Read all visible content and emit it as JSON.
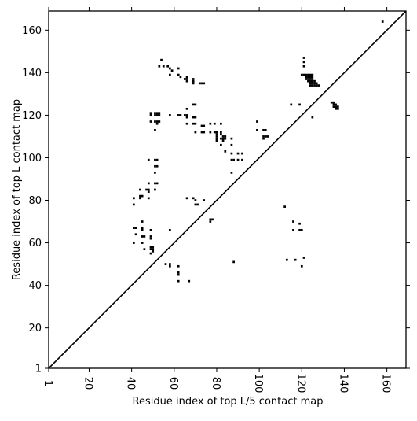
{
  "chart_data": {
    "type": "heatmap",
    "title": "",
    "xlabel": "Residue index of top L/5 contact map",
    "ylabel": "Residue index of top L contact map",
    "xlim": [
      1,
      169
    ],
    "ylim": [
      1,
      169
    ],
    "xticks": [
      1,
      20,
      40,
      60,
      80,
      100,
      120,
      140,
      160
    ],
    "yticks": [
      1,
      20,
      40,
      60,
      80,
      100,
      120,
      140,
      160
    ],
    "diagonal": true,
    "grid": false,
    "cell_color": "#000000",
    "upper_contacts": [
      [
        158,
        164
      ],
      [
        121,
        147
      ],
      [
        121,
        145
      ],
      [
        121,
        143
      ],
      [
        120,
        139
      ],
      [
        121,
        139
      ],
      [
        122,
        139
      ],
      [
        123,
        139
      ],
      [
        124,
        139
      ],
      [
        125,
        139
      ],
      [
        122,
        138
      ],
      [
        123,
        138
      ],
      [
        124,
        138
      ],
      [
        125,
        138
      ],
      [
        122,
        137
      ],
      [
        123,
        137
      ],
      [
        124,
        137
      ],
      [
        125,
        137
      ],
      [
        123,
        136
      ],
      [
        124,
        136
      ],
      [
        125,
        136
      ],
      [
        126,
        136
      ],
      [
        124,
        135
      ],
      [
        125,
        135
      ],
      [
        126,
        135
      ],
      [
        127,
        135
      ],
      [
        124,
        134
      ],
      [
        125,
        134
      ],
      [
        126,
        134
      ],
      [
        127,
        134
      ],
      [
        128,
        134
      ],
      [
        119,
        125
      ],
      [
        115,
        125
      ],
      [
        134,
        126
      ],
      [
        135,
        126
      ],
      [
        135,
        125
      ],
      [
        136,
        125
      ],
      [
        135,
        124
      ],
      [
        136,
        124
      ],
      [
        137,
        124
      ],
      [
        136,
        123
      ],
      [
        137,
        123
      ],
      [
        125,
        119
      ]
    ],
    "lower_contacts": [
      [
        54,
        146
      ],
      [
        53,
        143
      ],
      [
        55,
        143
      ],
      [
        57,
        143
      ],
      [
        58,
        142
      ],
      [
        62,
        142
      ],
      [
        59,
        141
      ],
      [
        58,
        139
      ],
      [
        62,
        139
      ],
      [
        63,
        138
      ],
      [
        66,
        138
      ],
      [
        65,
        137
      ],
      [
        66,
        137
      ],
      [
        69,
        137
      ],
      [
        66,
        136
      ],
      [
        69,
        136
      ],
      [
        69,
        135
      ],
      [
        72,
        135
      ],
      [
        73,
        135
      ],
      [
        74,
        135
      ],
      [
        69,
        125
      ],
      [
        70,
        125
      ],
      [
        66,
        123
      ],
      [
        49,
        121
      ],
      [
        51,
        121
      ],
      [
        52,
        121
      ],
      [
        53,
        121
      ],
      [
        58,
        120
      ],
      [
        62,
        120
      ],
      [
        63,
        120
      ],
      [
        65,
        120
      ],
      [
        66,
        120
      ],
      [
        51,
        120
      ],
      [
        52,
        120
      ],
      [
        53,
        120
      ],
      [
        49,
        120
      ],
      [
        66,
        119
      ],
      [
        69,
        119
      ],
      [
        70,
        119
      ],
      [
        49,
        117
      ],
      [
        51,
        117
      ],
      [
        52,
        117
      ],
      [
        53,
        117
      ],
      [
        52,
        116
      ],
      [
        66,
        116
      ],
      [
        69,
        116
      ],
      [
        70,
        116
      ],
      [
        73,
        115
      ],
      [
        74,
        115
      ],
      [
        77,
        116
      ],
      [
        79,
        116
      ],
      [
        82,
        116
      ],
      [
        51,
        113
      ],
      [
        70,
        112
      ],
      [
        73,
        112
      ],
      [
        74,
        112
      ],
      [
        77,
        112
      ],
      [
        79,
        112
      ],
      [
        80,
        112
      ],
      [
        82,
        112
      ],
      [
        80,
        111
      ],
      [
        82,
        111
      ],
      [
        80,
        110
      ],
      [
        83,
        110
      ],
      [
        84,
        110
      ],
      [
        80,
        109
      ],
      [
        82,
        109
      ],
      [
        83,
        109
      ],
      [
        84,
        109
      ],
      [
        87,
        109
      ],
      [
        80,
        108
      ],
      [
        83,
        108
      ],
      [
        82,
        106
      ],
      [
        87,
        106
      ],
      [
        84,
        103
      ],
      [
        87,
        102
      ],
      [
        90,
        102
      ],
      [
        92,
        102
      ],
      [
        48,
        99
      ],
      [
        51,
        99
      ],
      [
        52,
        99
      ],
      [
        87,
        99
      ],
      [
        88,
        99
      ],
      [
        90,
        99
      ],
      [
        92,
        99
      ],
      [
        51,
        96
      ],
      [
        52,
        96
      ],
      [
        51,
        93
      ],
      [
        87,
        93
      ],
      [
        48,
        88
      ],
      [
        51,
        88
      ],
      [
        52,
        88
      ],
      [
        44,
        85
      ],
      [
        47,
        85
      ],
      [
        48,
        85
      ],
      [
        51,
        85
      ],
      [
        48,
        84
      ],
      [
        44,
        82
      ],
      [
        45,
        82
      ],
      [
        44,
        81
      ],
      [
        41,
        81
      ],
      [
        48,
        81
      ],
      [
        66,
        81
      ],
      [
        69,
        81
      ],
      [
        74,
        80
      ],
      [
        70,
        80
      ],
      [
        70,
        78
      ],
      [
        71,
        78
      ],
      [
        41,
        78
      ],
      [
        77,
        71
      ],
      [
        78,
        71
      ],
      [
        77,
        70
      ],
      [
        45,
        70
      ],
      [
        41,
        67
      ],
      [
        42,
        67
      ],
      [
        45,
        67
      ],
      [
        45,
        66
      ],
      [
        49,
        66
      ],
      [
        58,
        66
      ],
      [
        42,
        64
      ],
      [
        45,
        63
      ],
      [
        46,
        63
      ],
      [
        49,
        63
      ],
      [
        49,
        62
      ],
      [
        41,
        60
      ],
      [
        45,
        60
      ],
      [
        49,
        58
      ],
      [
        50,
        58
      ],
      [
        46,
        57
      ],
      [
        49,
        57
      ],
      [
        50,
        57
      ],
      [
        50,
        56
      ],
      [
        49,
        55
      ],
      [
        88,
        51
      ],
      [
        56,
        50
      ],
      [
        58,
        50
      ],
      [
        58,
        49
      ],
      [
        62,
        49
      ],
      [
        62,
        46
      ],
      [
        62,
        45
      ],
      [
        62,
        42
      ],
      [
        67,
        42
      ],
      [
        99,
        117
      ],
      [
        99,
        113
      ],
      [
        102,
        113
      ],
      [
        103,
        113
      ],
      [
        102,
        110
      ],
      [
        103,
        110
      ],
      [
        104,
        110
      ],
      [
        102,
        109
      ],
      [
        112,
        77
      ],
      [
        116,
        70
      ],
      [
        116,
        66
      ],
      [
        119,
        69
      ],
      [
        119,
        66
      ],
      [
        120,
        66
      ],
      [
        113,
        52
      ],
      [
        117,
        52
      ],
      [
        121,
        53
      ],
      [
        120,
        49
      ]
    ]
  }
}
